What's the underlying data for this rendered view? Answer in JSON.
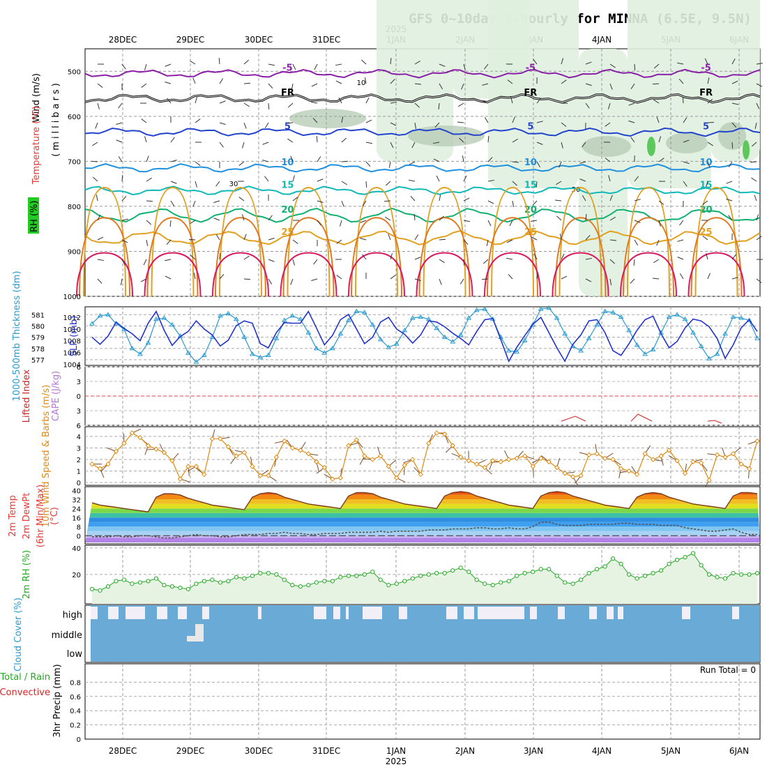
{
  "title": "GFS 0~10day 3-hourly for MINNA (6.5E, 9.5N)",
  "year_label": "2025",
  "dates": [
    "28DEC",
    "29DEC",
    "30DEC",
    "31DEC",
    "1JAN",
    "2JAN",
    "3JAN",
    "4JAN",
    "5JAN",
    "6JAN"
  ],
  "colors": {
    "temperature": "#e53935",
    "rh": "#22aa22",
    "thickness": "#2a9ad0",
    "slp": "#2233cc",
    "lifted": "#cc2222",
    "cape": "#b477d6",
    "wind10": "#e08a10",
    "rh2m": "#22aa22",
    "cloud": "#6aaad6",
    "precip_total": "#22aa22",
    "precip_conv": "#dd2222"
  },
  "chart_data": [
    {
      "type": "contour",
      "panel": "upper-air",
      "ylabel_parts": [
        "Wind (m/s)",
        "Temperature (°C)",
        "RH (%)",
        "(millibars)"
      ],
      "y_ticks": [
        500,
        600,
        700,
        800,
        900,
        1000
      ],
      "ylim": [
        1000,
        450
      ],
      "x": [
        "28DEC",
        "29DEC",
        "30DEC",
        "31DEC",
        "1JAN",
        "2JAN",
        "3JAN",
        "4JAN",
        "5JAN",
        "6JAN"
      ],
      "isotherms": [
        {
          "label": "-5",
          "pressure_mb": 505,
          "color": "#8a1fa8"
        },
        {
          "label": "FR",
          "pressure_mb": 560,
          "color": "#000000"
        },
        {
          "label": "5",
          "pressure_mb": 635,
          "color": "#2244cc"
        },
        {
          "label": "10",
          "pressure_mb": 715,
          "color": "#1f90e0"
        },
        {
          "label": "15",
          "pressure_mb": 765,
          "color": "#10b8b8"
        },
        {
          "label": "20",
          "pressure_mb": 820,
          "color": "#10b070"
        },
        {
          "label": "25",
          "pressure_mb": 870,
          "color": "#e0a020"
        }
      ],
      "rh_labels": [
        "10",
        "30",
        "50"
      ]
    },
    {
      "type": "line",
      "panel": "thickness-slp",
      "ylabel": "1000-500mb Thickness (dm)",
      "y2label": "SLP (mb)",
      "y_ticks": [
        577,
        578,
        579,
        580,
        581
      ],
      "y2_ticks": [
        1004,
        1006,
        1008,
        1010,
        1012
      ],
      "series": [
        {
          "name": "Thickness",
          "unit": "dm",
          "values": [
            580.2,
            580.9,
            581.0,
            580.2,
            579.7,
            578.0,
            577.5,
            578.5,
            580.6,
            580.7,
            580.1,
            579.1,
            577.6,
            576.8,
            577.4,
            579.0,
            580.9,
            581.1,
            580.6,
            579.0,
            577.5,
            577.2,
            577.4,
            578.9,
            580.5,
            580.9,
            580.6,
            579.4,
            578.0,
            577.6,
            578.0,
            579.3,
            580.5,
            581.3,
            581.2,
            580.1,
            578.8,
            578.1,
            578.4,
            579.6,
            580.7,
            580.8,
            580.6,
            579.8,
            579.0,
            578.6,
            579.2,
            580.7,
            581.4,
            581.5,
            580.6,
            579.0,
            577.8,
            577.7,
            578.7,
            580.1,
            581.5,
            581.6,
            580.7,
            579.3,
            578.2,
            577.8,
            578.9,
            580.1,
            581.3,
            581.2,
            580.8,
            579.6,
            578.3,
            577.5,
            577.9,
            579.4,
            580.8,
            581.0,
            580.6,
            579.4,
            578.2,
            577.1,
            577.5,
            579.3,
            580.8,
            580.7,
            580.5,
            578.9
          ]
        },
        {
          "name": "SLP",
          "unit": "mb",
          "values": [
            1008.6,
            1007.4,
            1008.8,
            1011.2,
            1010.1,
            1009.2,
            1008.0,
            1011.0,
            1013.0,
            1009.8,
            1007.2,
            1008.7,
            1009.6,
            1011.4,
            1010.0,
            1009.0,
            1007.1,
            1008.1,
            1010.6,
            1011.4,
            1011.0,
            1007.5,
            1006.8,
            1009.4,
            1011.1,
            1011.0,
            1011.0,
            1013.0,
            1010.2,
            1007.3,
            1008.9,
            1011.6,
            1012.5,
            1010.0,
            1007.5,
            1008.6,
            1011.2,
            1012.0,
            1010.0,
            1009.1,
            1007.6,
            1009.0,
            1011.4,
            1011.2,
            1010.4,
            1009.3,
            1008.4,
            1007.3,
            1009.6,
            1011.6,
            1011.8,
            1008.2,
            1004.5,
            1006.9,
            1008.9,
            1010.8,
            1012.0,
            1009.4,
            1006.8,
            1004.5,
            1007.4,
            1009.0,
            1011.4,
            1011.6,
            1009.4,
            1006.3,
            1005.5,
            1007.5,
            1009.8,
            1011.6,
            1012.2,
            1009.2,
            1006.8,
            1007.9,
            1010.2,
            1011.7,
            1011.4,
            1010.4,
            1008.4,
            1005.0,
            1007.3,
            1010.2,
            1011.6,
            1009.6
          ]
        }
      ]
    },
    {
      "type": "line",
      "panel": "stability",
      "ylabel": "Lifted Index",
      "y2label": "CAPE (J/kg)",
      "y_ticks": [
        -6,
        -3,
        0,
        3,
        6
      ],
      "ylim": [
        -6,
        6
      ]
    },
    {
      "type": "line",
      "panel": "wind10m",
      "ylabel": "10m Wind Speed & Barbs (m/s)",
      "y_ticks": [
        0,
        1,
        2,
        3,
        4
      ],
      "ylim": [
        0,
        4.8
      ],
      "series": [
        {
          "name": "10m Wind Speed",
          "values": [
            1.6,
            1.2,
            1.6,
            2.7,
            3.4,
            4.3,
            3.9,
            3.2,
            2.9,
            2.6,
            1.9,
            0.3,
            1.4,
            1.4,
            0.7,
            3.8,
            3.8,
            3.1,
            2.3,
            2.6,
            1.4,
            0.6,
            0.6,
            2.2,
            3.6,
            3.0,
            2.8,
            2.5,
            1.8,
            1.3,
            0.3,
            0.4,
            3.2,
            3.7,
            2.3,
            2.0,
            2.3,
            1.4,
            0.4,
            1.5,
            2.0,
            0.7,
            3.4,
            4.3,
            4.2,
            3.2,
            2.2,
            1.9,
            1.6,
            1.3,
            1.9,
            1.8,
            2.0,
            2.1,
            2.3,
            1.4,
            2.1,
            1.8,
            1.3,
            0.8,
            0.5,
            0.6,
            2.4,
            2.5,
            2.1,
            2.0,
            1.2,
            1.0,
            0.7,
            2.5,
            2.0,
            2.3,
            2.8,
            1.9,
            0.8,
            1.8,
            1.7,
            0.2,
            2.4,
            2.2,
            2.5,
            1.6,
            1.2,
            3.6
          ]
        }
      ]
    },
    {
      "type": "area",
      "panel": "temp2m",
      "ylabel_parts": [
        "2m Temp",
        "2m DewPt",
        "(6hr Min/Max)",
        "(°C)"
      ],
      "y_ticks": [
        0,
        8,
        16,
        24,
        32,
        40
      ],
      "ylim": [
        -6,
        42
      ],
      "series": [
        {
          "name": "2m Temp",
          "values": [
            29,
            27,
            26,
            25,
            24,
            23,
            22,
            21,
            34,
            37,
            37,
            36,
            33,
            31,
            29,
            27,
            26,
            25,
            24,
            23,
            34,
            37,
            38,
            37,
            34,
            32,
            30,
            28,
            27,
            26,
            25,
            24,
            35,
            38,
            38,
            37,
            34,
            32,
            30,
            28,
            27,
            26,
            25,
            24,
            35,
            38,
            39,
            38,
            35,
            33,
            31,
            29,
            27,
            26,
            25,
            24,
            35,
            38,
            39,
            38,
            35,
            33,
            31,
            29,
            27,
            26,
            25,
            24,
            34,
            37,
            38,
            37,
            34,
            32,
            30,
            28,
            27,
            26,
            25,
            24,
            35,
            38,
            38,
            37
          ]
        },
        {
          "name": "2m DewPt",
          "values": [
            -1,
            -1,
            -1,
            0,
            -1,
            -1,
            0,
            0,
            -1,
            -2,
            -2,
            -1,
            0,
            1,
            0,
            0,
            -1,
            -1,
            0,
            1,
            1,
            1,
            2,
            2,
            3,
            2,
            2,
            1,
            1,
            2,
            2,
            2,
            3,
            3,
            3,
            3,
            4,
            3,
            4,
            4,
            4,
            4,
            5,
            5,
            5,
            6,
            6,
            6,
            7,
            7,
            6,
            6,
            7,
            6,
            6,
            8,
            12,
            12,
            10,
            9,
            9,
            9,
            10,
            10,
            10,
            10,
            11,
            11,
            10,
            10,
            10,
            9,
            9,
            9,
            7,
            6,
            5,
            4,
            4,
            5,
            6,
            3,
            1,
            1
          ]
        }
      ]
    },
    {
      "type": "area",
      "panel": "rh2m",
      "ylabel": "2m RH (%)",
      "y_ticks": [
        20,
        40
      ],
      "ylim": [
        0,
        42
      ],
      "series": [
        {
          "name": "2m RH",
          "values": [
            9,
            8,
            11,
            15,
            16,
            13,
            14,
            15,
            17,
            12,
            11,
            10,
            9,
            13,
            15,
            16,
            14,
            15,
            18,
            17,
            19,
            21,
            21,
            20,
            16,
            12,
            11,
            12,
            14,
            15,
            15,
            18,
            19,
            19,
            20,
            22,
            16,
            12,
            13,
            15,
            17,
            19,
            20,
            21,
            21,
            23,
            25,
            22,
            16,
            13,
            12,
            14,
            15,
            19,
            21,
            22,
            24,
            24,
            19,
            14,
            13,
            16,
            21,
            24,
            26,
            32,
            28,
            20,
            17,
            19,
            21,
            23,
            28,
            31,
            33,
            36,
            27,
            20,
            18,
            17,
            21,
            20,
            20,
            21
          ]
        }
      ]
    },
    {
      "type": "area",
      "panel": "cloud",
      "ylabel": "Cloud Cover (%)",
      "y_ticks": [
        "high",
        "middle",
        "low"
      ]
    },
    {
      "type": "bar",
      "panel": "precip",
      "ylabel": "3hr Precip (mm)",
      "ylabel_extra": [
        "Total / Rain",
        "Convective"
      ],
      "y_ticks": [
        0,
        0.2,
        0.4,
        0.6,
        0.8
      ],
      "ylim": [
        0,
        1.0
      ],
      "run_total_label": "Run Total = 0",
      "values": []
    }
  ]
}
